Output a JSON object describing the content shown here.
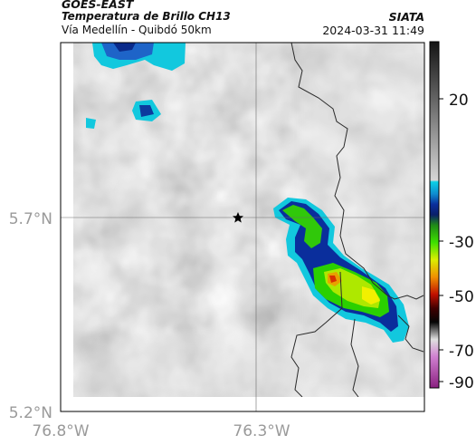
{
  "header": {
    "title": "GOES-EAST",
    "subtitle": "Temperatura de Brillo CH13",
    "location": "Vía Medellín - Quibdó 50km",
    "org": "SIATA",
    "datetime": "2024-03-31 11:49"
  },
  "axes": {
    "y_labels": [
      "5.7°N",
      "5.2°N"
    ],
    "x_labels": [
      "76.8°W",
      "76.3°W"
    ]
  },
  "colorbar": {
    "ticks": [
      "20",
      "-30",
      "-50",
      "-70",
      "-90"
    ],
    "colors": {
      "cyan": "#12c8de",
      "blue": "#1030b4",
      "green": "#20d000",
      "yellow": "#f2f000",
      "red": "#d83000",
      "black": "#000000",
      "magenta": "#c040b0"
    }
  },
  "map": {
    "marker_icon": "star-icon",
    "background_gray": "#c4c4c4"
  }
}
